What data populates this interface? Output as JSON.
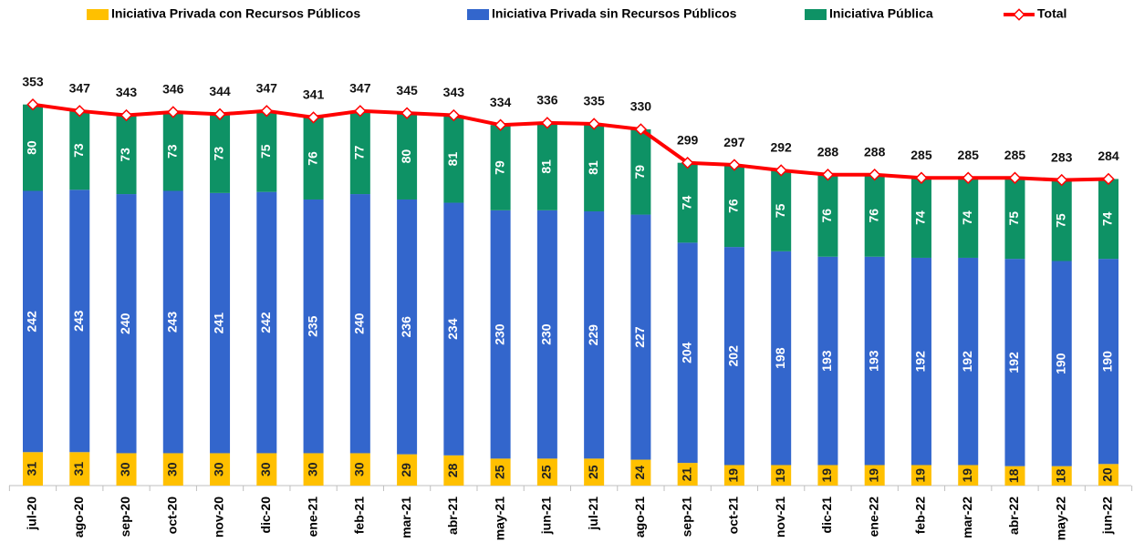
{
  "chart_data": {
    "type": "bar",
    "stacked": true,
    "categories": [
      "jul-20",
      "ago-20",
      "sep-20",
      "oct-20",
      "nov-20",
      "dic-20",
      "ene-21",
      "feb-21",
      "mar-21",
      "abr-21",
      "may-21",
      "jun-21",
      "jul-21",
      "ago-21",
      "sep-21",
      "oct-21",
      "nov-21",
      "dic-21",
      "ene-22",
      "feb-22",
      "mar-22",
      "abr-22",
      "may-22",
      "jun-22"
    ],
    "series": [
      {
        "name": "Iniciativa Privada con Recursos Públicos",
        "color": "#FFC000",
        "values": [
          31,
          31,
          30,
          30,
          30,
          30,
          30,
          30,
          29,
          28,
          25,
          25,
          25,
          24,
          21,
          19,
          19,
          19,
          19,
          19,
          19,
          18,
          18,
          20
        ]
      },
      {
        "name": "Iniciativa Privada sin Recursos Públicos",
        "color": "#3366CC",
        "values": [
          242,
          243,
          240,
          243,
          241,
          242,
          235,
          240,
          236,
          234,
          230,
          230,
          229,
          227,
          204,
          202,
          198,
          193,
          193,
          192,
          192,
          192,
          190,
          190
        ]
      },
      {
        "name": "Iniciativa Pública",
        "color": "#0E9265",
        "values": [
          80,
          73,
          73,
          73,
          73,
          75,
          76,
          77,
          80,
          81,
          79,
          81,
          81,
          79,
          74,
          76,
          75,
          76,
          76,
          74,
          74,
          75,
          75,
          74
        ]
      },
      {
        "name": "Total",
        "type": "line",
        "color": "#FF0000",
        "values": [
          353,
          347,
          343,
          346,
          344,
          347,
          341,
          347,
          345,
          343,
          334,
          336,
          335,
          330,
          299,
          297,
          292,
          288,
          288,
          285,
          285,
          285,
          283,
          284
        ]
      }
    ]
  }
}
